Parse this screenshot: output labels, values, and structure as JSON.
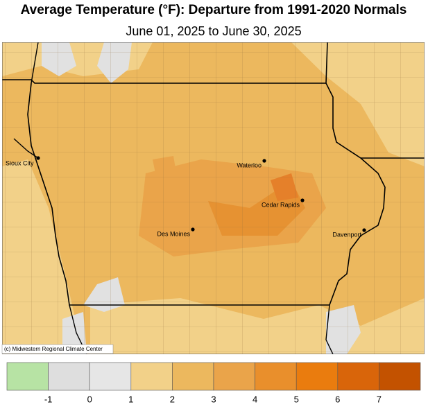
{
  "header": {
    "title": "Average Temperature (°F): Departure from 1991-2020 Normals",
    "subtitle": "June 01, 2025 to June 30, 2025"
  },
  "cities": [
    {
      "name": "Sioux City"
    },
    {
      "name": "Waterloo"
    },
    {
      "name": "Cedar Rapids"
    },
    {
      "name": "Des Moines"
    },
    {
      "name": "Davenport"
    }
  ],
  "credit": "(c) Midwestern Regional Climate Center",
  "legend": {
    "ticks": [
      -1,
      0,
      1,
      2,
      3,
      4,
      5,
      6,
      7
    ],
    "colors": [
      "#b7e3a4",
      "#dedede",
      "#e6e6e6",
      "#f2d189",
      "#ecb85e",
      "#eaa44a",
      "#e98f2c",
      "#ea7c0e",
      "#d9650a",
      "#c35200"
    ]
  }
}
